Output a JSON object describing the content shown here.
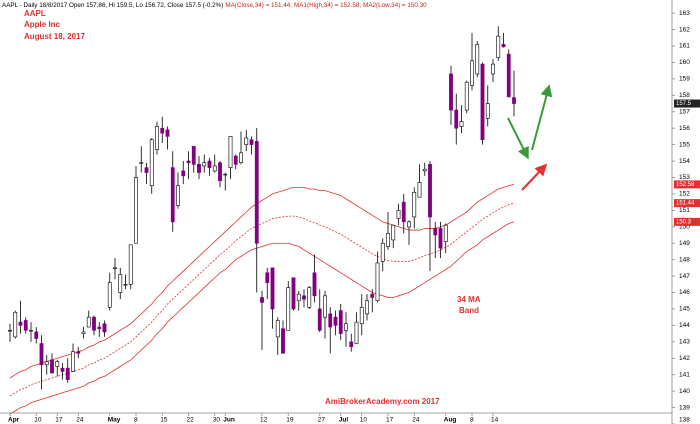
{
  "chart_data": {
    "type": "candlestick",
    "header": [
      {
        "text": "AAPL - Daily 18/8/2017 Open 157.86, Hi 159.5, Lo 156.72, Close 157.5 (-0.2%)",
        "color": "#000000"
      },
      {
        "text": "MA(Close,34) = 151.44,",
        "color": "#cc2020"
      },
      {
        "text": "MA1(High,34) = 152.58,",
        "color": "#cc2020"
      },
      {
        "text": "MA2(Low,34) = 150.30",
        "color": "#cc2020"
      }
    ],
    "annotations": [
      "AAPL",
      "Apple Inc",
      "August 18, 2017",
      "34 MA",
      "Band",
      "AmiBrokerAcademy.com  2017"
    ],
    "categories": [
      "Apr",
      null,
      null,
      null,
      null,
      "10",
      null,
      null,
      null,
      "17",
      null,
      null,
      null,
      "24",
      null,
      null,
      null,
      null,
      null,
      "May",
      null,
      null,
      null,
      null,
      "8",
      null,
      null,
      null,
      null,
      "15",
      null,
      null,
      null,
      null,
      "22",
      null,
      null,
      null,
      null,
      "30",
      null,
      "Jun",
      null,
      null,
      null,
      null,
      null,
      null,
      "12",
      null,
      null,
      null,
      null,
      "19",
      null,
      null,
      null,
      null,
      null,
      "27",
      null,
      null,
      null,
      "Jul",
      null,
      null,
      null,
      "10",
      null,
      null,
      null,
      null,
      "17",
      null,
      null,
      null,
      null,
      "24",
      null,
      null,
      null,
      null,
      null,
      "Aug",
      null,
      null,
      null,
      null,
      "8",
      null,
      null,
      null,
      "14",
      null,
      null,
      null,
      null
    ],
    "ohlc": [
      [
        143.7,
        144.1,
        143.0,
        143.7
      ],
      [
        143.3,
        144.9,
        143.2,
        144.8
      ],
      [
        144.2,
        145.5,
        143.5,
        144.0
      ],
      [
        144.3,
        144.5,
        143.5,
        143.7
      ],
      [
        143.7,
        144.2,
        143.0,
        143.7
      ],
      [
        143.6,
        143.9,
        142.9,
        143.2
      ],
      [
        142.9,
        143.4,
        140.1,
        141.6
      ],
      [
        141.6,
        142.2,
        141.0,
        141.8
      ],
      [
        141.9,
        142.3,
        141.1,
        141.1
      ],
      [
        141.5,
        141.9,
        140.9,
        141.8
      ],
      [
        141.4,
        141.7,
        140.7,
        141.2
      ],
      [
        141.4,
        142.0,
        140.5,
        140.7
      ],
      [
        141.2,
        142.9,
        141.2,
        142.4
      ],
      [
        142.4,
        142.7,
        142.0,
        142.3
      ],
      [
        143.5,
        143.9,
        143.2,
        143.6
      ],
      [
        143.9,
        144.9,
        143.9,
        144.5
      ],
      [
        144.5,
        144.6,
        143.4,
        143.7
      ],
      [
        143.9,
        144.2,
        143.3,
        143.8
      ],
      [
        144.1,
        144.3,
        143.3,
        143.6
      ],
      [
        145.1,
        147.2,
        144.9,
        146.6
      ],
      [
        147.5,
        148.1,
        146.8,
        147.5
      ],
      [
        146.0,
        147.5,
        145.6,
        147.1
      ],
      [
        146.5,
        147.1,
        146.2,
        146.5
      ],
      [
        146.5,
        148.9,
        146.2,
        148.9
      ],
      [
        149.0,
        153.7,
        149.0,
        153.0
      ],
      [
        153.9,
        154.9,
        153.3,
        153.9
      ],
      [
        153.6,
        153.9,
        152.6,
        153.3
      ],
      [
        152.5,
        155.4,
        152.0,
        155.3
      ],
      [
        154.7,
        156.4,
        154.4,
        156.1
      ],
      [
        156.0,
        156.7,
        155.1,
        155.7
      ],
      [
        155.9,
        156.1,
        154.7,
        155.5
      ],
      [
        153.6,
        154.6,
        149.7,
        150.3
      ],
      [
        151.3,
        153.3,
        151.1,
        152.5
      ],
      [
        153.4,
        154.0,
        152.6,
        153.1
      ],
      [
        154.0,
        154.6,
        152.9,
        153.9
      ],
      [
        154.9,
        154.9,
        153.3,
        153.8
      ],
      [
        153.8,
        154.3,
        152.9,
        153.3
      ],
      [
        153.7,
        154.4,
        153.3,
        153.9
      ],
      [
        154.0,
        154.2,
        153.1,
        153.6
      ],
      [
        153.4,
        154.4,
        153.3,
        153.7
      ],
      [
        153.9,
        154.0,
        152.4,
        152.8
      ],
      [
        153.2,
        153.3,
        152.2,
        153.2
      ],
      [
        153.6,
        155.5,
        152.9,
        155.5
      ],
      [
        154.3,
        154.4,
        153.5,
        153.8
      ],
      [
        153.9,
        155.8,
        153.8,
        154.5
      ],
      [
        155.0,
        155.9,
        154.6,
        155.4
      ],
      [
        155.3,
        155.5,
        154.4,
        155.0
      ],
      [
        155.2,
        156.0,
        146.0,
        149.0
      ],
      [
        145.7,
        146.1,
        142.5,
        145.4
      ],
      [
        147.2,
        147.5,
        145.6,
        146.6
      ],
      [
        147.5,
        147.5,
        143.8,
        145.0
      ],
      [
        143.3,
        144.5,
        142.2,
        144.3
      ],
      [
        143.8,
        144.3,
        142.3,
        142.3
      ],
      [
        143.7,
        146.7,
        143.7,
        146.3
      ],
      [
        146.9,
        146.9,
        144.9,
        145.0
      ],
      [
        145.5,
        146.1,
        144.9,
        145.9
      ],
      [
        145.8,
        146.2,
        145.1,
        145.6
      ],
      [
        145.1,
        146.4,
        145.0,
        146.3
      ],
      [
        147.2,
        148.3,
        145.4,
        145.8
      ],
      [
        145.0,
        146.2,
        143.6,
        143.7
      ],
      [
        144.5,
        146.1,
        143.2,
        145.8
      ],
      [
        144.7,
        145.1,
        142.3,
        143.9
      ],
      [
        144.5,
        144.9,
        143.4,
        144.0
      ],
      [
        144.9,
        145.3,
        143.1,
        143.5
      ],
      [
        143.7,
        144.8,
        142.7,
        144.1
      ],
      [
        143.0,
        143.5,
        142.4,
        142.7
      ],
      [
        142.9,
        144.8,
        142.9,
        144.2
      ],
      [
        144.1,
        145.9,
        143.4,
        145.1
      ],
      [
        144.7,
        145.9,
        144.3,
        145.5
      ],
      [
        145.9,
        146.2,
        144.8,
        145.7
      ],
      [
        145.5,
        148.5,
        145.4,
        147.8
      ],
      [
        147.9,
        149.3,
        147.3,
        149.0
      ],
      [
        148.8,
        150.9,
        148.6,
        149.6
      ],
      [
        149.2,
        150.1,
        148.7,
        150.1
      ],
      [
        150.5,
        151.4,
        150.1,
        151.0
      ],
      [
        151.5,
        152.0,
        149.6,
        150.3
      ],
      [
        149.99,
        150.4,
        148.9,
        150.3
      ],
      [
        150.6,
        152.4,
        149.9,
        152.1
      ],
      [
        151.8,
        153.8,
        151.8,
        152.7
      ],
      [
        153.4,
        153.9,
        153.1,
        153.5
      ],
      [
        153.8,
        154.0,
        147.3,
        150.6
      ],
      [
        149.9,
        150.3,
        148.1,
        149.5
      ],
      [
        149.9,
        150.3,
        148.1,
        148.7
      ],
      [
        149.1,
        150.2,
        148.4,
        150.1
      ],
      [
        159.3,
        159.8,
        156.2,
        157.1
      ],
      [
        157.1,
        158.1,
        155.0,
        156.0
      ],
      [
        156.1,
        157.4,
        155.7,
        156.4
      ],
      [
        157.1,
        158.9,
        156.9,
        158.8
      ],
      [
        158.6,
        161.8,
        158.3,
        160.1
      ],
      [
        159.3,
        161.3,
        159.1,
        161.1
      ],
      [
        159.9,
        160.0,
        155.0,
        155.3
      ],
      [
        156.6,
        158.6,
        156.1,
        157.5
      ],
      [
        159.3,
        160.2,
        158.8,
        159.9
      ],
      [
        160.3,
        162.2,
        160.1,
        161.6
      ],
      [
        161.1,
        161.8,
        160.9,
        160.95
      ],
      [
        160.5,
        160.8,
        157.9,
        157.9
      ],
      [
        157.86,
        159.5,
        156.72,
        157.5
      ]
    ],
    "up_color": "#ffffff",
    "down_color": "#800080",
    "wick_color": "#000000",
    "last_label_color": "#222222",
    "lines": [
      {
        "color": "#e03030",
        "dash": false,
        "values": [
          140.8,
          141.0,
          141.2,
          141.3,
          141.5,
          141.6,
          141.7,
          141.8,
          141.9,
          142.0,
          142.1,
          142.2,
          142.3,
          142.4,
          142.5,
          142.7,
          142.8,
          143.0,
          143.1,
          143.3,
          143.5,
          143.7,
          143.9,
          144.1,
          144.4,
          144.7,
          145.0,
          145.3,
          145.7,
          146.0,
          146.4,
          146.7,
          147.0,
          147.3,
          147.6,
          147.9,
          148.2,
          148.5,
          148.8,
          149.1,
          149.4,
          149.7,
          150.0,
          150.3,
          150.6,
          150.9,
          151.2,
          151.4,
          151.6,
          151.8,
          152.0,
          152.1,
          152.2,
          152.3,
          152.4,
          152.4,
          152.4,
          152.3,
          152.3,
          152.2,
          152.2,
          152.1,
          152.0,
          151.9,
          151.7,
          151.5,
          151.3,
          151.1,
          150.9,
          150.7,
          150.5,
          150.3,
          150.2,
          150.1,
          150.0,
          149.9,
          149.8,
          149.8,
          149.8,
          149.9,
          149.9,
          149.9,
          150.0,
          150.1,
          150.3,
          150.5,
          150.7,
          150.9,
          151.2,
          151.5,
          151.7,
          151.9,
          152.1,
          152.3,
          152.4,
          152.5,
          152.58
        ]
      },
      {
        "color": "#e03030",
        "dash": true,
        "values": [
          139.7,
          139.9,
          140.1,
          140.2,
          140.4,
          140.5,
          140.6,
          140.7,
          140.8,
          140.9,
          141.0,
          141.1,
          141.2,
          141.3,
          141.4,
          141.6,
          141.7,
          141.9,
          142.0,
          142.2,
          142.4,
          142.6,
          142.8,
          143.0,
          143.3,
          143.6,
          143.9,
          144.2,
          144.6,
          144.9,
          145.3,
          145.6,
          145.9,
          146.2,
          146.5,
          146.8,
          147.1,
          147.4,
          147.7,
          148.0,
          148.3,
          148.55,
          148.85,
          149.15,
          149.4,
          149.65,
          149.9,
          150.05,
          150.2,
          150.35,
          150.5,
          150.55,
          150.6,
          150.65,
          150.65,
          150.6,
          150.5,
          150.35,
          150.25,
          150.1,
          150.0,
          149.85,
          149.7,
          149.55,
          149.35,
          149.15,
          148.95,
          148.75,
          148.55,
          148.35,
          148.2,
          148.05,
          147.95,
          147.9,
          147.9,
          147.9,
          147.9,
          148.0,
          148.1,
          148.25,
          148.35,
          148.45,
          148.6,
          148.75,
          148.95,
          149.2,
          149.45,
          149.7,
          149.95,
          150.2,
          150.45,
          150.65,
          150.85,
          151.05,
          151.2,
          151.35,
          151.44
        ]
      },
      {
        "color": "#e03030",
        "dash": false,
        "values": [
          138.6,
          138.8,
          139.0,
          139.1,
          139.3,
          139.4,
          139.5,
          139.6,
          139.7,
          139.8,
          139.9,
          140.0,
          140.1,
          140.2,
          140.3,
          140.5,
          140.6,
          140.8,
          140.9,
          141.1,
          141.3,
          141.5,
          141.7,
          141.9,
          142.2,
          142.5,
          142.8,
          143.1,
          143.5,
          143.8,
          144.2,
          144.5,
          144.8,
          145.1,
          145.4,
          145.7,
          146.0,
          146.3,
          146.6,
          146.9,
          147.2,
          147.4,
          147.7,
          148.0,
          148.2,
          148.4,
          148.6,
          148.7,
          148.8,
          148.9,
          149.0,
          149.0,
          149.0,
          149.0,
          148.9,
          148.8,
          148.6,
          148.4,
          148.2,
          148.0,
          147.8,
          147.6,
          147.4,
          147.2,
          147.0,
          146.8,
          146.6,
          146.4,
          146.2,
          146.0,
          145.9,
          145.8,
          145.7,
          145.7,
          145.8,
          145.9,
          146.0,
          146.2,
          146.4,
          146.6,
          146.8,
          147.0,
          147.2,
          147.4,
          147.6,
          147.9,
          148.2,
          148.5,
          148.7,
          148.9,
          149.2,
          149.4,
          149.6,
          149.8,
          150.0,
          150.2,
          150.3
        ]
      }
    ],
    "ylim": [
      138,
      163.8
    ],
    "yticks": [
      138,
      139,
      140,
      141,
      142,
      143,
      144,
      145,
      146,
      147,
      148,
      149,
      150,
      151,
      152,
      153,
      154,
      155,
      156,
      157,
      158,
      159,
      160,
      161,
      162,
      163
    ],
    "grid": false
  }
}
